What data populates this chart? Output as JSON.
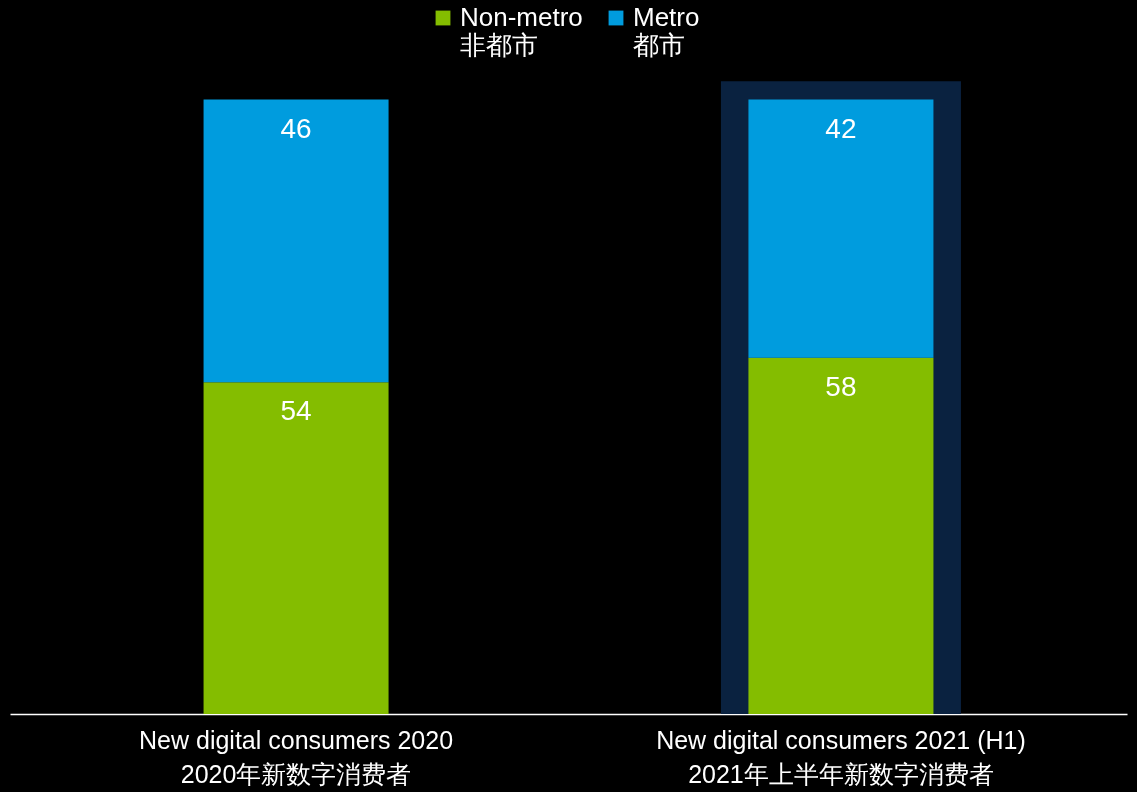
{
  "chart_data": {
    "type": "bar",
    "stacked": true,
    "data_labels": true,
    "legend": "top",
    "grid": false,
    "categories": [
      "New digital consumers 2020\n2020年新数字消费者",
      "New digital consumers 2021 (H1)\n2021年上半年新数字消费者"
    ],
    "series": [
      {
        "name": "Non-metro\n非都市",
        "color": "#84bd00",
        "values": [
          54,
          58
        ]
      },
      {
        "name": "Metro\n都市",
        "color": "#009cde",
        "values": [
          46,
          42
        ]
      }
    ],
    "bands": [
      {
        "axis": "x",
        "from": "New digital consumers 2021 (H1)\n2021年上半年新数字消费者",
        "to": "New digital consumers 2021 (H1)\n2021年上半年新数字消费者",
        "color": "#0a2240"
      }
    ]
  }
}
